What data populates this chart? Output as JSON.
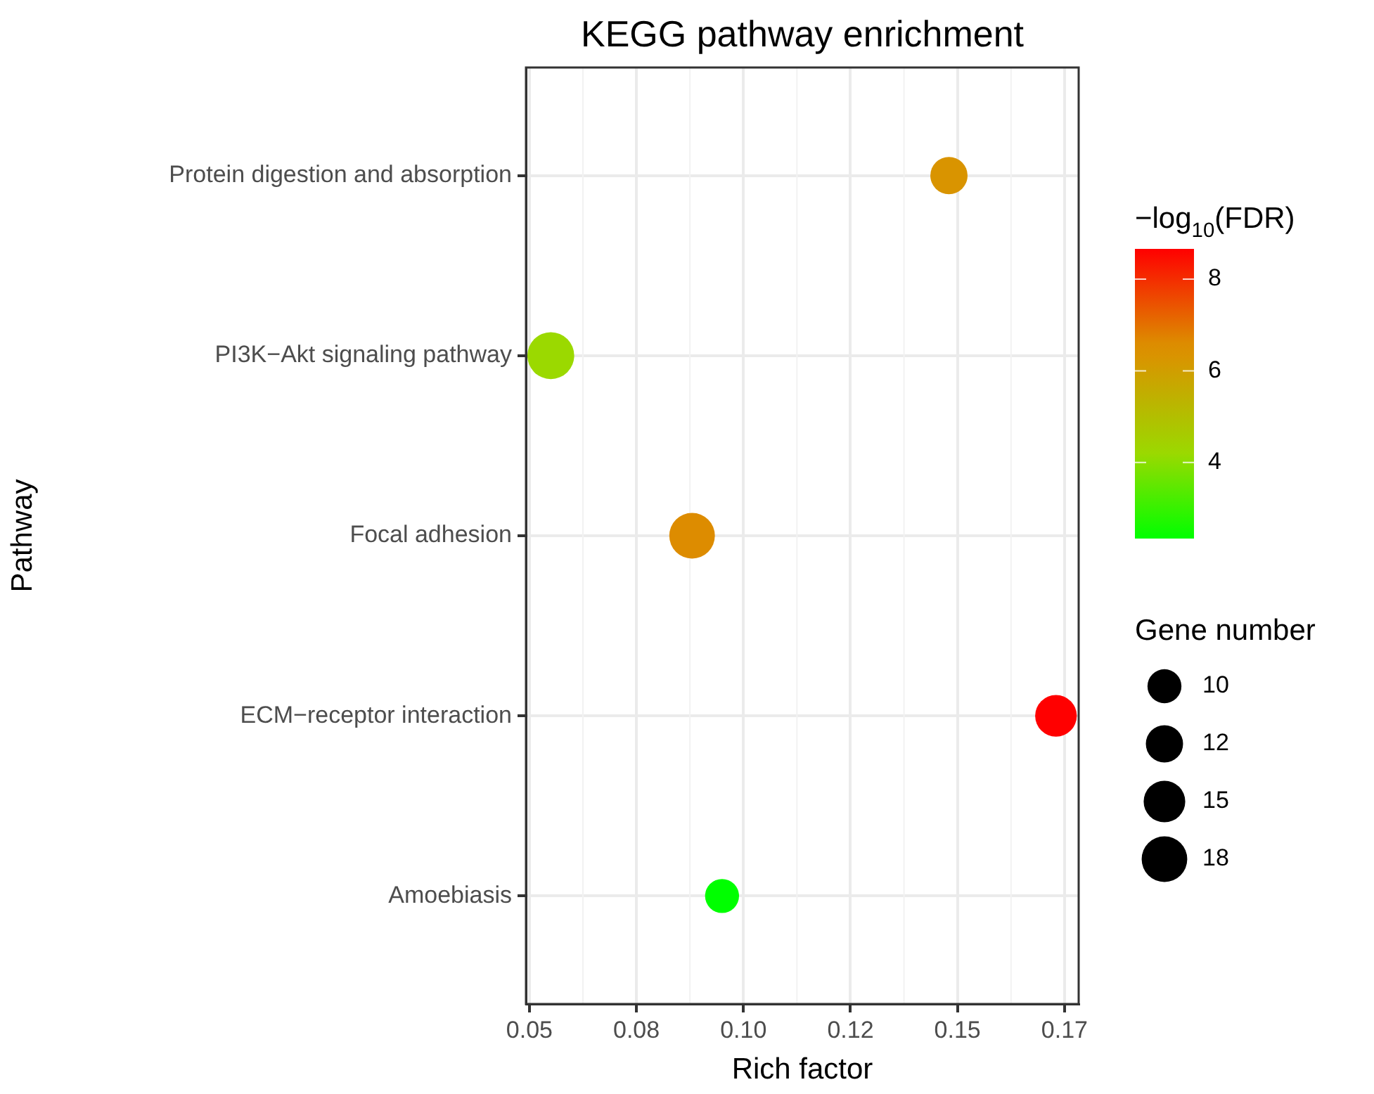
{
  "chart_data": {
    "type": "bubble",
    "orientation": "horizontal",
    "title": "KEGG pathway enrichment",
    "xlabel": "Rich factor",
    "ylabel": "Pathway",
    "clabel": "−log$_{10}$(FDR)",
    "legend_title": "Gene number",
    "categories": [
      "Protein digestion and absorption",
      "PI3K−Akt signaling pathway",
      "Focal adhesion",
      "ECM−receptor interaction",
      "Amoebiasis"
    ],
    "values": [
      0.148,
      0.055,
      0.088,
      0.173,
      0.095
    ],
    "sizes": [
      12,
      19,
      18,
      15,
      10
    ],
    "cvalues": [
      6.3,
      4.2,
      6.6,
      8.66,
      2.34
    ],
    "colors": [
      "#d99400",
      "#9bd900",
      "#dd8c00",
      "#ff0000",
      "#00ff00"
    ],
    "size_legend": [
      10,
      12,
      15,
      18
    ],
    "clim": [
      2.34,
      8.66
    ],
    "cticks": [
      4,
      6,
      8
    ],
    "xlim": [
      0.0492,
      0.1783
    ],
    "xticks": [
      {
        "value": 0.05,
        "label": "0.05"
      },
      {
        "value": 0.075,
        "label": "0.08"
      },
      {
        "value": 0.1,
        "label": "0.10"
      },
      {
        "value": 0.125,
        "label": "0.12"
      },
      {
        "value": 0.15,
        "label": "0.15"
      },
      {
        "value": 0.175,
        "label": "0.17"
      }
    ],
    "grid": true
  }
}
